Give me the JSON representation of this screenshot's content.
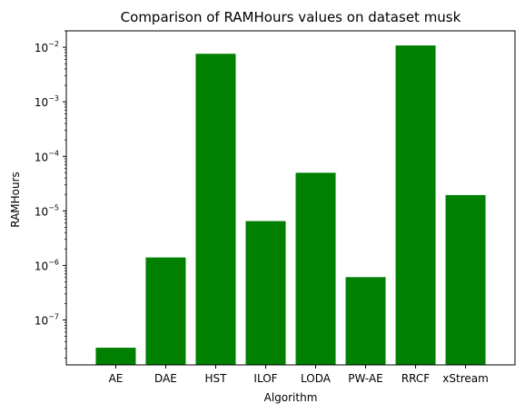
{
  "chart_data": {
    "type": "bar",
    "title": "Comparison of RAMHours values on dataset musk",
    "xlabel": "Algorithm",
    "ylabel": "RAMHours",
    "yscale": "log",
    "ylim": [
      1.5e-08,
      0.02
    ],
    "grid": false,
    "legend": "none",
    "bar_color": "#008000",
    "categories": [
      "AE",
      "DAE",
      "HST",
      "ILOF",
      "LODA",
      "PW-AE",
      "RRCF",
      "xStream"
    ],
    "values": [
      3.1e-08,
      1.4e-06,
      0.0076,
      6.5e-06,
      5e-05,
      6.1e-07,
      0.0108,
      1.95e-05
    ],
    "yticks": [
      {
        "base": "10",
        "exp": "−7",
        "value": 1e-07
      },
      {
        "base": "10",
        "exp": "−6",
        "value": 1e-06
      },
      {
        "base": "10",
        "exp": "−5",
        "value": 1e-05
      },
      {
        "base": "10",
        "exp": "−4",
        "value": 0.0001
      },
      {
        "base": "10",
        "exp": "−3",
        "value": 0.001
      },
      {
        "base": "10",
        "exp": "−2",
        "value": 0.01
      }
    ]
  }
}
